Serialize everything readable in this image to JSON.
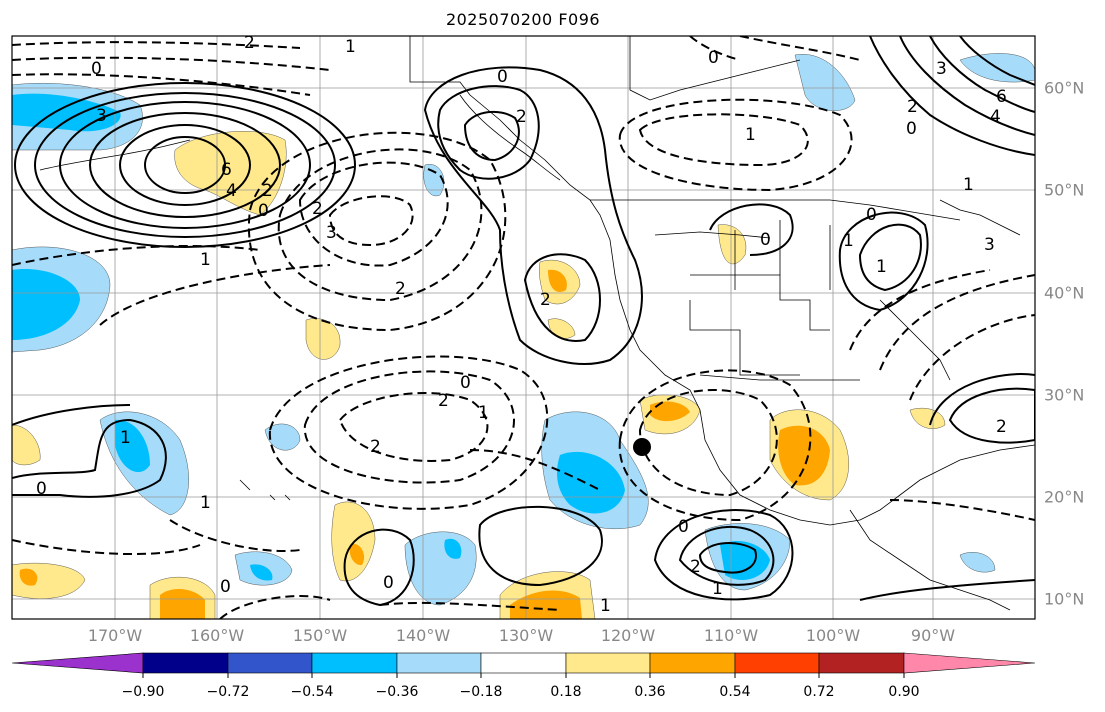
{
  "title": "2025070200 F096",
  "lon_labels": [
    "170°W",
    "160°W",
    "150°W",
    "140°W",
    "130°W",
    "120°W",
    "110°W",
    "100°W",
    "90°W"
  ],
  "lat_labels": [
    "60°N",
    "50°N",
    "40°N",
    "30°N",
    "20°N",
    "10°N"
  ],
  "colorbar": {
    "ticks": [
      "−0.90",
      "−0.72",
      "−0.54",
      "−0.36",
      "−0.18",
      "0.18",
      "0.36",
      "0.54",
      "0.72",
      "0.90"
    ],
    "colors": [
      "#9b32cd",
      "#00008b",
      "#3355cc",
      "#00bfff",
      "#a6dcf9",
      "#ffffff",
      "#ffe98c",
      "#ffa500",
      "#ff4000",
      "#b22222",
      "#ff88aa"
    ]
  },
  "contour_labels": [
    "0",
    "2",
    "3",
    "1",
    "6",
    "4",
    "2",
    "0",
    "2",
    "3",
    "1",
    "0",
    "2",
    "0",
    "2",
    "1",
    "2",
    "1",
    "0",
    "2",
    "0",
    "1",
    "0",
    "1",
    "0",
    "2",
    "1",
    "0",
    "1",
    "2",
    "0",
    "0",
    "1",
    "3",
    "4",
    "6",
    "2",
    "1",
    "0",
    "1",
    "2",
    "3"
  ]
}
